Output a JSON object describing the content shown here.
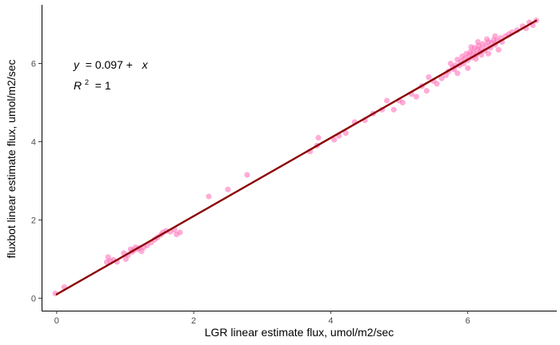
{
  "chart_data": {
    "type": "scatter",
    "xlabel": "LGR linear estimate flux, umol/m2/sec",
    "ylabel": "fluxbot linear estimate flux, umol/m2/sec",
    "xlim": [
      -0.22,
      7.3
    ],
    "ylim": [
      -0.32,
      7.5
    ],
    "x_ticks": [
      "0",
      "2",
      "4",
      "6"
    ],
    "y_ticks": [
      "0",
      "2",
      "4",
      "6"
    ],
    "grid": false,
    "legend": "none",
    "point_color": "#ff69b4",
    "line_color": "#8b0000",
    "fit_line": {
      "intercept": 0.097,
      "slope": 1,
      "x_range": [
        0,
        7
      ]
    },
    "annotations": {
      "equation": {
        "lhs": "y",
        "rhs": " = 0.097 +  ",
        "var": "x"
      },
      "r2": {
        "base": "R",
        "sup": "2",
        "rhs": " = 1"
      }
    },
    "points": [
      [
        -0.02,
        0.12
      ],
      [
        0.11,
        0.28
      ],
      [
        0.73,
        0.92
      ],
      [
        0.75,
        1.05
      ],
      [
        0.78,
        0.95
      ],
      [
        0.83,
        0.98
      ],
      [
        0.88,
        0.93
      ],
      [
        0.98,
        1.15
      ],
      [
        1.01,
        1.0
      ],
      [
        1.04,
        1.1
      ],
      [
        1.08,
        1.25
      ],
      [
        1.1,
        1.18
      ],
      [
        1.12,
        1.22
      ],
      [
        1.15,
        1.3
      ],
      [
        1.18,
        1.25
      ],
      [
        1.21,
        1.28
      ],
      [
        1.24,
        1.2
      ],
      [
        1.27,
        1.3
      ],
      [
        1.32,
        1.35
      ],
      [
        1.38,
        1.42
      ],
      [
        1.43,
        1.5
      ],
      [
        1.47,
        1.55
      ],
      [
        1.52,
        1.62
      ],
      [
        1.55,
        1.68
      ],
      [
        1.6,
        1.72
      ],
      [
        1.66,
        1.7
      ],
      [
        1.72,
        1.75
      ],
      [
        1.75,
        1.63
      ],
      [
        1.8,
        1.68
      ],
      [
        2.22,
        2.6
      ],
      [
        2.5,
        2.78
      ],
      [
        2.78,
        3.15
      ],
      [
        3.7,
        3.75
      ],
      [
        3.8,
        3.9
      ],
      [
        3.82,
        4.1
      ],
      [
        4.05,
        4.05
      ],
      [
        4.12,
        4.15
      ],
      [
        4.22,
        4.22
      ],
      [
        4.35,
        4.5
      ],
      [
        4.5,
        4.55
      ],
      [
        4.62,
        4.72
      ],
      [
        4.75,
        4.82
      ],
      [
        4.82,
        5.05
      ],
      [
        4.92,
        4.82
      ],
      [
        5.0,
        5.05
      ],
      [
        5.05,
        5.0
      ],
      [
        5.18,
        5.22
      ],
      [
        5.25,
        5.15
      ],
      [
        5.33,
        5.42
      ],
      [
        5.4,
        5.3
      ],
      [
        5.43,
        5.65
      ],
      [
        5.5,
        5.55
      ],
      [
        5.55,
        5.48
      ],
      [
        5.62,
        5.62
      ],
      [
        5.68,
        5.7
      ],
      [
        5.72,
        5.8
      ],
      [
        5.75,
        6.0
      ],
      [
        5.78,
        5.9
      ],
      [
        5.8,
        5.85
      ],
      [
        5.82,
        5.95
      ],
      [
        5.85,
        6.1
      ],
      [
        5.88,
        5.95
      ],
      [
        5.9,
        6.05
      ],
      [
        5.92,
        6.18
      ],
      [
        5.94,
        6.0
      ],
      [
        5.96,
        6.12
      ],
      [
        5.98,
        6.25
      ],
      [
        6.0,
        6.08
      ],
      [
        6.02,
        6.2
      ],
      [
        6.04,
        6.3
      ],
      [
        6.06,
        6.15
      ],
      [
        6.08,
        6.28
      ],
      [
        6.1,
        6.4
      ],
      [
        6.12,
        6.22
      ],
      [
        6.14,
        6.35
      ],
      [
        6.16,
        6.45
      ],
      [
        6.18,
        6.3
      ],
      [
        6.2,
        6.38
      ],
      [
        6.22,
        6.5
      ],
      [
        6.25,
        6.33
      ],
      [
        6.27,
        6.45
      ],
      [
        6.3,
        6.55
      ],
      [
        6.33,
        6.4
      ],
      [
        6.35,
        6.52
      ],
      [
        6.38,
        6.6
      ],
      [
        6.4,
        6.48
      ],
      [
        6.43,
        6.58
      ],
      [
        6.45,
        6.35
      ],
      [
        6.48,
        6.65
      ],
      [
        6.5,
        6.55
      ],
      [
        6.55,
        6.7
      ],
      [
        6.6,
        6.75
      ],
      [
        6.65,
        6.8
      ],
      [
        6.72,
        6.85
      ],
      [
        6.8,
        6.95
      ],
      [
        6.85,
        6.9
      ],
      [
        6.9,
        7.05
      ],
      [
        6.95,
        6.98
      ],
      [
        7.0,
        7.1
      ],
      [
        5.85,
        5.75
      ],
      [
        6.0,
        5.88
      ],
      [
        6.05,
        6.42
      ],
      [
        6.12,
        6.12
      ],
      [
        6.2,
        6.22
      ],
      [
        6.28,
        6.62
      ],
      [
        6.15,
        6.55
      ],
      [
        6.3,
        6.25
      ],
      [
        6.4,
        6.7
      ]
    ]
  }
}
